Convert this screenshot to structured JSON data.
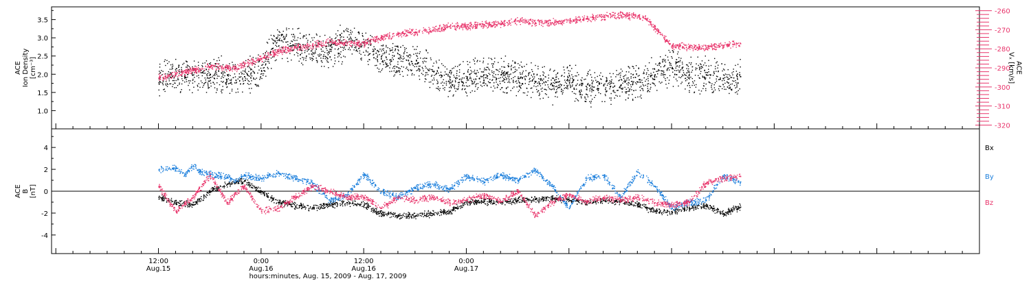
{
  "colors": {
    "black": "#000000",
    "pink": "#e8336a",
    "blue": "#1c7fdc"
  },
  "chart_data": [
    {
      "type": "scatter",
      "panel": "top",
      "ylabel_lines": [
        "ACE",
        "Ion Density",
        "[cm⁻³]"
      ],
      "ylim": [
        0.5,
        3.85
      ],
      "yticks": [
        "1.0",
        "1.5",
        "2.0",
        "2.5",
        "3.0",
        "3.5"
      ],
      "y2label_lines": [
        "ACE",
        "Vₓ [km/s]"
      ],
      "y2lim": [
        -322,
        -258
      ],
      "y2ticks": [
        "-320",
        "-310",
        "-300",
        "-290",
        "-280",
        "-270",
        "-260"
      ],
      "series": [
        {
          "key": "density",
          "color": "#000000",
          "axis": "left",
          "x": [
            0,
            3,
            6,
            8,
            9,
            10,
            12,
            13,
            14,
            16,
            18,
            20,
            22,
            24,
            26,
            28,
            30,
            32,
            34,
            36,
            38,
            40,
            42,
            44,
            46,
            48,
            50,
            52,
            54,
            56,
            58,
            60,
            62,
            64,
            66,
            68
          ],
          "y": [
            1.9,
            1.95,
            2.0,
            2.0,
            1.85,
            1.95,
            2.1,
            2.6,
            2.95,
            2.8,
            2.6,
            2.7,
            2.9,
            2.8,
            2.5,
            2.45,
            2.3,
            2.1,
            1.8,
            1.9,
            2.0,
            2.0,
            1.9,
            1.8,
            1.7,
            1.8,
            1.6,
            1.7,
            1.7,
            1.8,
            2.0,
            2.2,
            2.0,
            2.0,
            1.9,
            1.95
          ]
        },
        {
          "key": "vx",
          "color": "#e8336a",
          "axis": "right",
          "x": [
            0,
            2,
            4,
            6,
            8,
            9,
            10,
            12,
            14,
            16,
            18,
            20,
            22,
            24,
            26,
            28,
            30,
            32,
            34,
            36,
            38,
            40,
            42,
            44,
            46,
            48,
            50,
            52,
            54,
            56,
            57,
            58,
            60,
            62,
            64,
            66,
            68
          ],
          "y": [
            -295,
            -293,
            -291,
            -289,
            -290,
            -290,
            -288,
            -285,
            -281,
            -279,
            -278,
            -276,
            -277,
            -277,
            -274,
            -272,
            -271,
            -270,
            -268,
            -268,
            -267,
            -267,
            -265,
            -266,
            -266,
            -265,
            -264,
            -263,
            -262,
            -263,
            -264,
            -269,
            -278,
            -279,
            -279,
            -278,
            -277
          ]
        }
      ]
    },
    {
      "type": "scatter",
      "panel": "bottom",
      "ylabel_lines": [
        "ACE",
        "B",
        "[nT]"
      ],
      "ylim": [
        -5.7,
        5.7
      ],
      "yticks": [
        "-4",
        "-2",
        "0",
        "2",
        "4"
      ],
      "legend": [
        "Bx",
        "By",
        "Bz"
      ],
      "series": [
        {
          "key": "Bx",
          "name": "Bx",
          "color": "#000000",
          "x": [
            0,
            2,
            4,
            6,
            8,
            9,
            10,
            12,
            14,
            16,
            18,
            20,
            22,
            24,
            26,
            28,
            30,
            32,
            34,
            36,
            38,
            40,
            42,
            44,
            46,
            48,
            50,
            52,
            54,
            56,
            58,
            60,
            62,
            64,
            66,
            68
          ],
          "y": [
            -0.5,
            -1.0,
            -1.2,
            0.0,
            0.7,
            0.9,
            1.0,
            0.0,
            -1.0,
            -1.3,
            -1.5,
            -1.2,
            -1.0,
            -1.2,
            -2.0,
            -2.2,
            -2.2,
            -2.0,
            -1.8,
            -1.0,
            -0.9,
            -1.0,
            -0.8,
            -0.7,
            -0.6,
            -0.8,
            -1.0,
            -0.8,
            -0.9,
            -1.2,
            -1.8,
            -1.9,
            -1.5,
            -1.3,
            -2.0,
            -1.4
          ]
        },
        {
          "key": "By",
          "name": "By",
          "color": "#1c7fdc",
          "x": [
            0,
            2,
            3,
            4,
            5,
            6,
            8,
            9,
            10,
            12,
            14,
            16,
            18,
            20,
            22,
            24,
            26,
            28,
            30,
            32,
            34,
            36,
            38,
            40,
            42,
            44,
            46,
            48,
            50,
            52,
            54,
            56,
            58,
            60,
            62,
            64,
            66,
            68
          ],
          "y": [
            2.0,
            2.2,
            1.5,
            2.3,
            1.8,
            1.6,
            1.3,
            1.0,
            1.5,
            1.2,
            1.7,
            1.2,
            0.7,
            -0.8,
            -0.3,
            1.6,
            0.0,
            -0.5,
            0.3,
            0.7,
            0.2,
            1.4,
            0.9,
            1.5,
            1.0,
            2.0,
            0.5,
            -1.5,
            1.2,
            1.5,
            -0.5,
            1.8,
            0.5,
            -1.5,
            -1.0,
            -0.8,
            1.4,
            0.9
          ]
        },
        {
          "key": "Bz",
          "name": "Bz",
          "color": "#e8336a",
          "x": [
            0,
            2,
            4,
            6,
            8,
            10,
            12,
            14,
            16,
            18,
            20,
            22,
            24,
            26,
            28,
            30,
            32,
            34,
            36,
            38,
            40,
            42,
            44,
            46,
            48,
            50,
            52,
            54,
            56,
            58,
            60,
            62,
            64,
            66,
            68
          ],
          "y": [
            0.5,
            -1.8,
            -0.5,
            1.5,
            -1.0,
            0.5,
            -1.8,
            -1.5,
            -0.5,
            0.5,
            0.0,
            -0.5,
            -0.5,
            -1.5,
            -0.6,
            -0.8,
            -0.5,
            -1.0,
            -0.8,
            -0.3,
            -0.9,
            0.0,
            -2.2,
            -1.0,
            -0.3,
            -0.9,
            -0.5,
            -0.8,
            -0.5,
            -1.0,
            -1.2,
            -1.0,
            0.8,
            1.2,
            1.4
          ]
        }
      ]
    }
  ],
  "x_axis": {
    "xlim": [
      -12.5,
      96
    ],
    "ticks": [
      {
        "x": 0,
        "time": "12:00",
        "date": "Aug.15"
      },
      {
        "x": 12,
        "time": "0:00",
        "date": "Aug.16"
      },
      {
        "x": 24,
        "time": "12:00",
        "date": "Aug.16"
      },
      {
        "x": 36,
        "time": "0:00",
        "date": "Aug.17"
      }
    ],
    "title": "hours:minutes, Aug. 15, 2009 - Aug. 17, 2009"
  }
}
